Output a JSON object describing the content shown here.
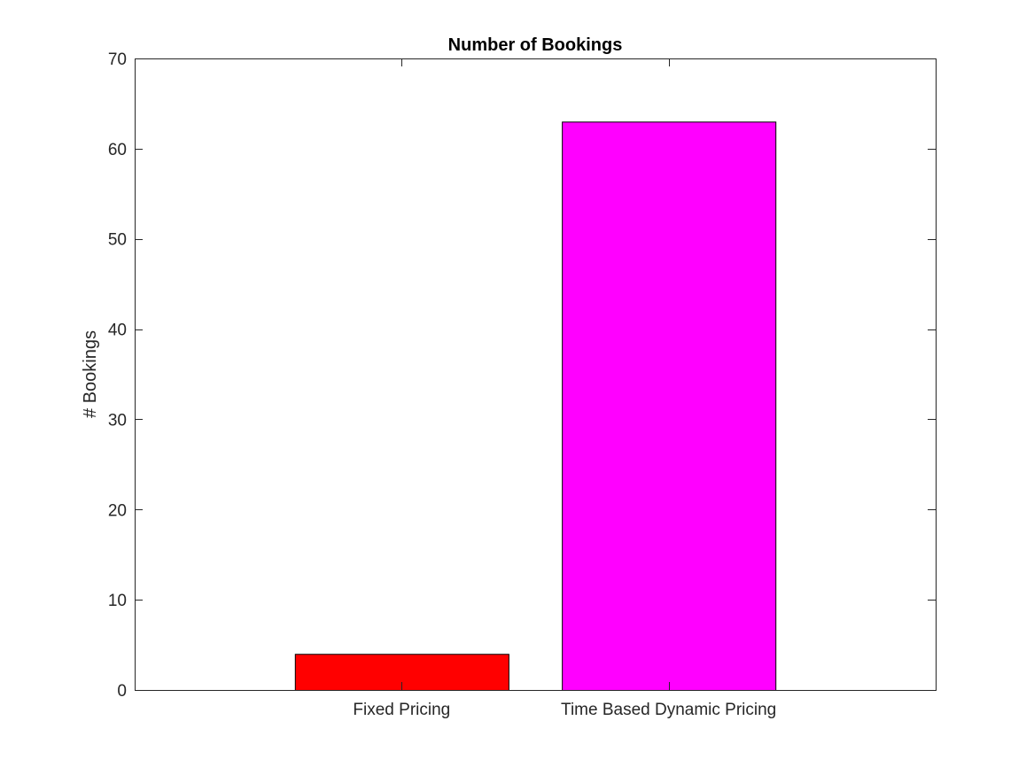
{
  "chart_data": {
    "type": "bar",
    "title": "Number of Bookings",
    "xlabel": "",
    "ylabel": "# Bookings",
    "categories": [
      "Fixed Pricing",
      "Time Based Dynamic Pricing"
    ],
    "values": [
      4,
      63
    ],
    "colors": [
      "#ff0000",
      "#ff00ff"
    ],
    "ylim": [
      0,
      70
    ],
    "yticks": [
      0,
      10,
      20,
      30,
      40,
      50,
      60,
      70
    ],
    "xlim": [
      0,
      3
    ],
    "grid": false,
    "legend": "none"
  }
}
